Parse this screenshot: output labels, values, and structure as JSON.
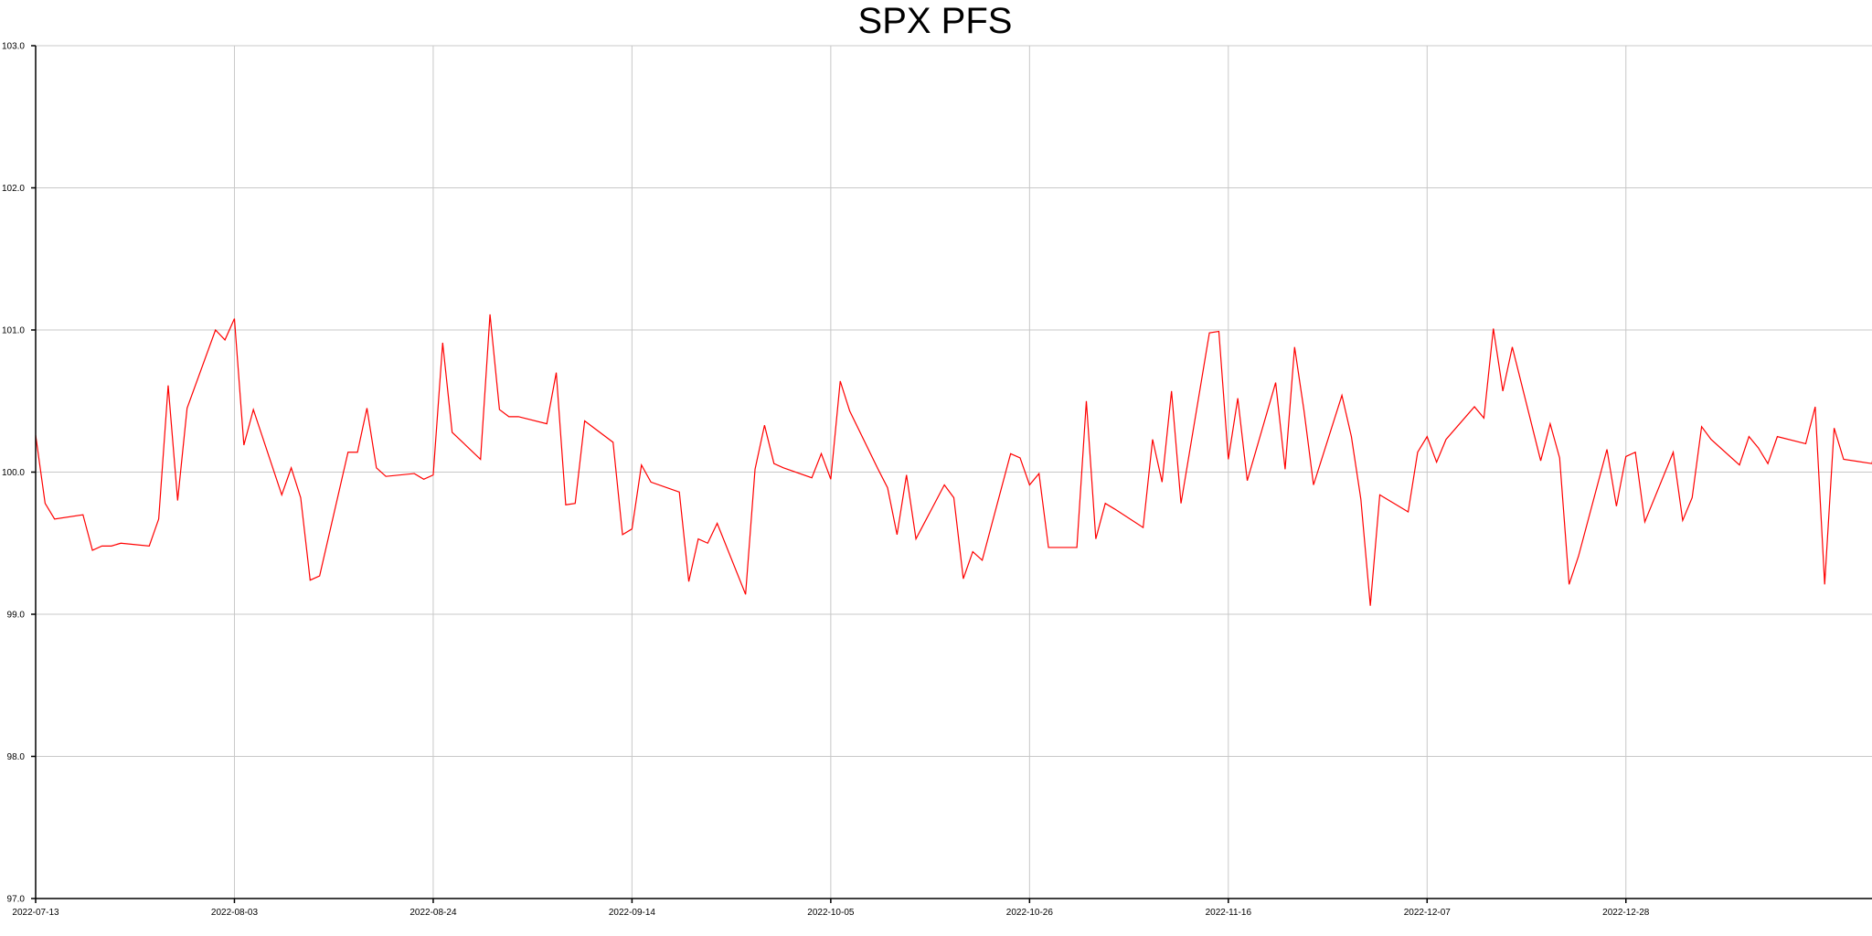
{
  "chart_data": {
    "type": "line",
    "title": "SPX PFS",
    "xlabel": "",
    "ylabel": "",
    "grid": true,
    "x_range": [
      "2022-07-13",
      "2023-01-23"
    ],
    "ylim": [
      97.0,
      103.0
    ],
    "x_ticks": [
      "2022-07-13",
      "2022-08-03",
      "2022-08-24",
      "2022-09-14",
      "2022-10-05",
      "2022-10-26",
      "2022-11-16",
      "2022-12-07",
      "2022-12-28"
    ],
    "y_ticks": [
      "97.0",
      "98.0",
      "99.0",
      "100.0",
      "101.0",
      "102.0",
      "103.0"
    ],
    "series": [
      {
        "color": "#ff0000",
        "start": "2022-07-13",
        "values": [
          100.26,
          99.78,
          99.67,
          99.7,
          99.45,
          99.48,
          99.48,
          99.5,
          99.48,
          99.67,
          100.61,
          99.8,
          100.45,
          101.0,
          100.93,
          101.08,
          100.19,
          100.44,
          99.84,
          100.03,
          99.82,
          99.24,
          99.27,
          100.14,
          100.14,
          100.45,
          100.03,
          99.97,
          99.99,
          99.95,
          99.98,
          100.91,
          100.28,
          100.09,
          101.11,
          100.44,
          100.39,
          100.39,
          100.34,
          100.7,
          99.77,
          99.78,
          100.36,
          100.21,
          99.56,
          99.6,
          100.05,
          99.93,
          99.86,
          99.23,
          99.53,
          99.5,
          99.64,
          99.14,
          100.02,
          100.33,
          100.06,
          100.03,
          99.96,
          100.13,
          99.95,
          100.64,
          100.43,
          100.02,
          99.89,
          99.56,
          99.98,
          99.53,
          99.91,
          99.82,
          99.25,
          99.44,
          99.38,
          100.13,
          100.1,
          99.91,
          99.99,
          99.47,
          99.47,
          100.5,
          99.53,
          99.78,
          99.74,
          99.61,
          100.23,
          99.93,
          100.57,
          99.78,
          100.98,
          100.99,
          100.09,
          100.52,
          99.94,
          100.63,
          100.02,
          100.88,
          100.43,
          99.91,
          100.54,
          100.25,
          99.81,
          99.06,
          99.84,
          99.72,
          100.14,
          100.25,
          100.07,
          100.23,
          100.46,
          100.38,
          101.01,
          100.57,
          100.88,
          100.08,
          100.34,
          100.1,
          99.21,
          99.41,
          100.16,
          99.76,
          100.11,
          100.14,
          99.65,
          100.14,
          99.66,
          99.82,
          100.32,
          100.23,
          100.05,
          100.25,
          100.17,
          100.06,
          100.25,
          100.2,
          100.46,
          99.21,
          100.31,
          100.09,
          100.06,
          100.46,
          99.91,
          99.86,
          99.69,
          100.52,
          100.2,
          100.74,
          100.08,
          99.5,
          99.31,
          99.99,
          100.15,
          99.99,
          99.68,
          99.98,
          100.23,
          100.26,
          100.21,
          99.81,
          99.69,
          100.12,
          99.98,
          100.08,
          100.1,
          100.08,
          100.15,
          100.15,
          99.94,
          99.9,
          100.49,
          100.4,
          100.34,
          100.62,
          100.62,
          100.01,
          100.76,
          100.35,
          100.62,
          99.73,
          100.0,
          100.48,
          100.32,
          100.07,
          100.02,
          99.92,
          100.23
        ]
      }
    ]
  }
}
